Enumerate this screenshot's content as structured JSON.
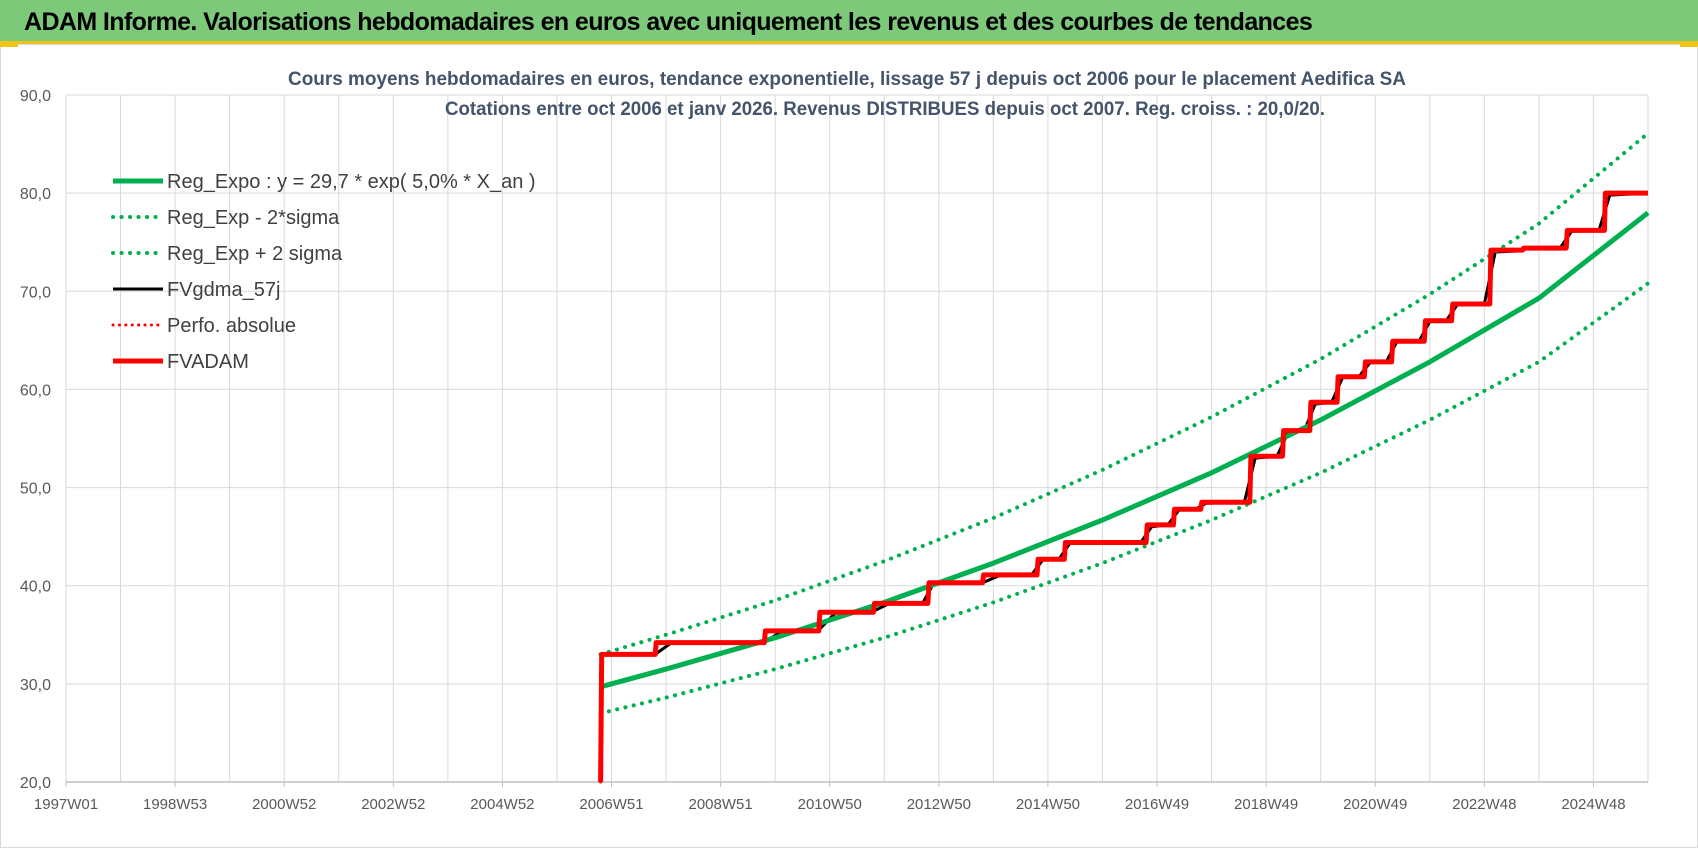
{
  "banner": {
    "title": "ADAM Informe. Valorisations hebdomadaires en euros avec uniquement les revenus et des courbes de tendances"
  },
  "colors": {
    "banner_bg": "#7dc97a",
    "accent": "#f0c419",
    "green": "#00b050",
    "red": "#ff0000",
    "black": "#000000",
    "grid": "#d9d9d9"
  },
  "chart_data": {
    "type": "line",
    "title_line1": "Cours moyens hebdomadaires en euros, tendance exponentielle, lissage 57 j depuis oct 2006 pour le placement Aedifica SA",
    "title_line2": "Cotations entre oct 2006 et janv 2026. Revenus DISTRIBUES depuis oct 2007. Reg. croiss. : 20,0/20.",
    "xlabel": "",
    "ylabel": "",
    "ylim": [
      20,
      90
    ],
    "xlim": [
      1997.0,
      2026.0
    ],
    "y_ticks": [
      "20,0",
      "30,0",
      "40,0",
      "50,0",
      "60,0",
      "70,0",
      "80,0",
      "90,0"
    ],
    "x_tick_labels": [
      "1997W01",
      "1998W53",
      "2000W52",
      "2002W52",
      "2004W52",
      "2006W51",
      "2008W51",
      "2010W50",
      "2012W50",
      "2014W50",
      "2016W49",
      "2018W49",
      "2020W49",
      "2022W48",
      "2024W48"
    ],
    "x_tick_years": [
      1997.0,
      1999.0,
      2001.0,
      2003.0,
      2005.0,
      2007.0,
      2009.0,
      2011.0,
      2013.0,
      2015.0,
      2017.0,
      2019.0,
      2021.0,
      2023.0,
      2025.0
    ],
    "grid": true,
    "legend_position": "top-left",
    "series": [
      {
        "name": "Reg_Expo : y = 29,7 * exp( 5,0% *  X_an )",
        "style": "solid",
        "color": "#00b050",
        "width": 5,
        "x": [
          2006.8,
          2008,
          2010,
          2012,
          2014,
          2016,
          2018,
          2020,
          2022,
          2024,
          2026
        ],
        "y": [
          29.7,
          31.5,
          34.7,
          38.3,
          42.3,
          46.7,
          51.5,
          56.9,
          62.8,
          69.3,
          78.0
        ]
      },
      {
        "name": "Reg_Exp - 2*sigma",
        "style": "dotted",
        "color": "#00b050",
        "width": 4,
        "x": [
          2006.8,
          2008,
          2010,
          2012,
          2014,
          2016,
          2018,
          2020,
          2022,
          2024,
          2026
        ],
        "y": [
          27.0,
          28.6,
          31.5,
          34.7,
          38.3,
          42.3,
          46.7,
          51.5,
          56.9,
          62.8,
          70.8
        ]
      },
      {
        "name": "Reg_Exp + 2 sigma",
        "style": "dotted",
        "color": "#00b050",
        "width": 4,
        "x": [
          2006.8,
          2008,
          2010,
          2012,
          2014,
          2016,
          2018,
          2020,
          2022,
          2024,
          2026
        ],
        "y": [
          33.0,
          35.0,
          38.5,
          42.5,
          46.9,
          51.8,
          57.2,
          63.1,
          69.7,
          76.9,
          86.1
        ]
      },
      {
        "name": "FVgdma_57j",
        "style": "solid",
        "color": "#000000",
        "width": 3,
        "x": [
          2006.8,
          2006.82,
          2007.8,
          2008.1,
          2009.8,
          2010.1,
          2010.8,
          2011.1,
          2011.8,
          2012.1,
          2012.7,
          2012.9,
          2013.8,
          2014.1,
          2014.7,
          2014.9,
          2015.2,
          2015.4,
          2016.7,
          2016.9,
          2017.2,
          2017.4,
          2017.7,
          2017.9,
          2018.6,
          2018.8,
          2019.2,
          2019.4,
          2019.7,
          2019.9,
          2020.2,
          2020.4,
          2020.7,
          2020.9,
          2021.2,
          2021.4,
          2021.8,
          2022.0,
          2022.3,
          2022.5,
          2023.0,
          2023.2,
          2023.6,
          2023.8,
          2024.4,
          2024.6,
          2025.1,
          2025.3,
          2026.0
        ],
        "y": [
          20.0,
          33.0,
          33.0,
          34.2,
          34.2,
          35.3,
          35.5,
          37.2,
          37.4,
          38.2,
          38.2,
          40.2,
          40.3,
          41.0,
          41.1,
          42.6,
          42.7,
          44.3,
          44.4,
          46.0,
          46.2,
          47.7,
          47.8,
          48.4,
          48.5,
          53.0,
          53.2,
          55.6,
          55.8,
          58.5,
          58.7,
          61.2,
          61.3,
          62.7,
          62.8,
          64.9,
          64.9,
          66.9,
          67.0,
          68.6,
          68.7,
          74.0,
          74.1,
          74.4,
          74.5,
          76.1,
          76.2,
          79.8,
          80.0
        ]
      },
      {
        "name": "Perfo. absolue",
        "style": "dotted",
        "color": "#ff0000",
        "width": 3,
        "x": [
          2006.8,
          2006.82,
          2007.8,
          2007.82,
          2009.8,
          2009.82,
          2010.8,
          2010.82,
          2011.8,
          2011.82,
          2012.8,
          2012.82,
          2013.8,
          2013.82,
          2014.8,
          2014.82,
          2015.3,
          2015.32,
          2016.8,
          2016.82,
          2017.3,
          2017.32,
          2017.8,
          2017.82,
          2018.7,
          2018.72,
          2019.3,
          2019.32,
          2019.8,
          2019.82,
          2020.3,
          2020.32,
          2020.8,
          2020.82,
          2021.3,
          2021.32,
          2021.9,
          2021.92,
          2022.4,
          2022.42,
          2023.1,
          2023.12,
          2023.7,
          2023.72,
          2024.5,
          2024.52,
          2025.2,
          2025.22,
          2026.0
        ],
        "y": [
          20.0,
          33.0,
          33.0,
          34.2,
          34.2,
          35.4,
          35.4,
          37.3,
          37.3,
          38.2,
          38.2,
          40.3,
          40.3,
          41.1,
          41.1,
          42.7,
          42.7,
          44.4,
          44.4,
          46.2,
          46.2,
          47.8,
          47.8,
          48.5,
          48.5,
          53.2,
          53.2,
          55.8,
          55.8,
          58.7,
          58.7,
          61.3,
          61.3,
          62.8,
          62.8,
          64.9,
          64.9,
          67.0,
          67.0,
          68.7,
          68.7,
          74.2,
          74.2,
          74.4,
          74.4,
          76.2,
          76.2,
          80.0,
          80.0
        ]
      },
      {
        "name": "FVADAM",
        "style": "solid",
        "color": "#ff0000",
        "width": 5,
        "x": [
          2006.8,
          2006.82,
          2007.8,
          2007.82,
          2009.8,
          2009.82,
          2010.8,
          2010.82,
          2011.8,
          2011.82,
          2012.8,
          2012.82,
          2013.8,
          2013.82,
          2014.8,
          2014.82,
          2015.3,
          2015.32,
          2016.8,
          2016.82,
          2017.3,
          2017.32,
          2017.8,
          2017.82,
          2018.7,
          2018.72,
          2019.3,
          2019.32,
          2019.8,
          2019.82,
          2020.3,
          2020.32,
          2020.8,
          2020.82,
          2021.3,
          2021.32,
          2021.9,
          2021.92,
          2022.4,
          2022.42,
          2023.1,
          2023.12,
          2023.7,
          2023.72,
          2024.5,
          2024.52,
          2025.2,
          2025.22,
          2026.0
        ],
        "y": [
          20.0,
          33.0,
          33.0,
          34.2,
          34.2,
          35.4,
          35.4,
          37.3,
          37.3,
          38.2,
          38.2,
          40.3,
          40.3,
          41.1,
          41.1,
          42.7,
          42.7,
          44.4,
          44.4,
          46.2,
          46.2,
          47.8,
          47.8,
          48.5,
          48.5,
          53.2,
          53.2,
          55.8,
          55.8,
          58.7,
          58.7,
          61.3,
          61.3,
          62.8,
          62.8,
          64.9,
          64.9,
          67.0,
          67.0,
          68.7,
          68.7,
          74.2,
          74.2,
          74.4,
          74.4,
          76.2,
          76.2,
          80.0,
          80.0
        ]
      }
    ]
  }
}
